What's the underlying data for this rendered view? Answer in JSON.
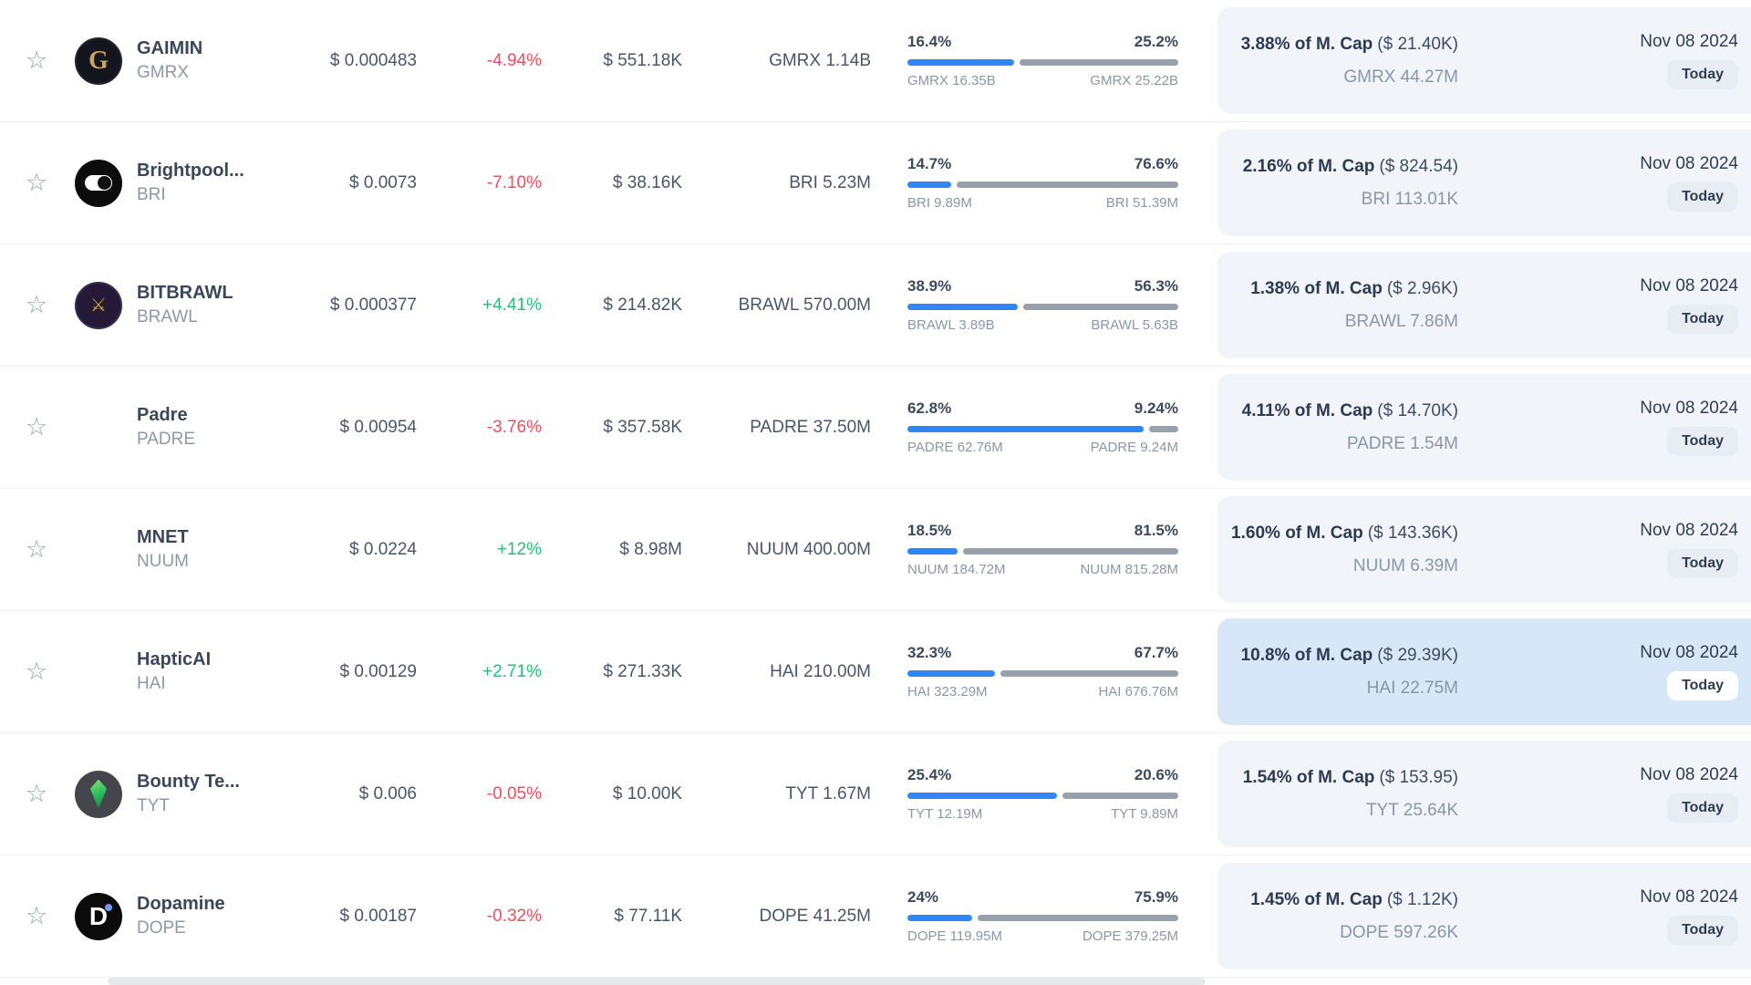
{
  "colors": {
    "accent_blue": "#2f87f6",
    "bar_gray": "#98a1ab",
    "positive": "#22c07a",
    "negative": "#ee4f5e",
    "panel_bg": "#f1f5fa",
    "panel_highlight_bg": "#d7e7f8",
    "badge_bg": "#e8edf4",
    "badge_highlight_bg": "#ffffff"
  },
  "table": {
    "rows": [
      {
        "name": "GAIMIN",
        "symbol": "GMRX",
        "logo": "gaimin",
        "logo_text": "G",
        "price": "$ 0.000483",
        "change": "-4.94%",
        "volume": "$ 551.18K",
        "supply": "GMRX 1.14B",
        "unlock_left_pct": "16.4%",
        "unlock_right_pct": "25.2%",
        "unlock_left_label": "GMRX 16.35B",
        "unlock_right_label": "GMRX 25.22B",
        "mcap_bold": "3.88% of M. Cap",
        "mcap_paren": "($ 21.40K)",
        "mcap_amount": "GMRX 44.27M",
        "date": "Nov 08 2024",
        "badge": "Today",
        "highlighted": false
      },
      {
        "name": "Brightpool...",
        "symbol": "BRI",
        "logo": "brightpool",
        "logo_text": "",
        "price": "$ 0.0073",
        "change": "-7.10%",
        "volume": "$ 38.16K",
        "supply": "BRI 5.23M",
        "unlock_left_pct": "14.7%",
        "unlock_right_pct": "76.6%",
        "unlock_left_label": "BRI 9.89M",
        "unlock_right_label": "BRI 51.39M",
        "mcap_bold": "2.16% of M. Cap",
        "mcap_paren": "($ 824.54)",
        "mcap_amount": "BRI 113.01K",
        "date": "Nov 08 2024",
        "badge": "Today",
        "highlighted": false
      },
      {
        "name": "BITBRAWL",
        "symbol": "BRAWL",
        "logo": "bitbrawl",
        "logo_text": "⚔",
        "price": "$ 0.000377",
        "change": "+4.41%",
        "volume": "$ 214.82K",
        "supply": "BRAWL 570.00M",
        "unlock_left_pct": "38.9%",
        "unlock_right_pct": "56.3%",
        "unlock_left_label": "BRAWL 3.89B",
        "unlock_right_label": "BRAWL 5.63B",
        "mcap_bold": "1.38% of M. Cap",
        "mcap_paren": "($ 2.96K)",
        "mcap_amount": "BRAWL 7.86M",
        "date": "Nov 08 2024",
        "badge": "Today",
        "highlighted": false
      },
      {
        "name": "Padre",
        "symbol": "PADRE",
        "logo": null,
        "logo_text": "",
        "price": "$ 0.00954",
        "change": "-3.76%",
        "volume": "$ 357.58K",
        "supply": "PADRE 37.50M",
        "unlock_left_pct": "62.8%",
        "unlock_right_pct": "9.24%",
        "unlock_left_label": "PADRE 62.76M",
        "unlock_right_label": "PADRE 9.24M",
        "mcap_bold": "4.11% of M. Cap",
        "mcap_paren": "($ 14.70K)",
        "mcap_amount": "PADRE 1.54M",
        "date": "Nov 08 2024",
        "badge": "Today",
        "highlighted": false
      },
      {
        "name": "MNET",
        "symbol": "NUUM",
        "logo": null,
        "logo_text": "",
        "price": "$ 0.0224",
        "change": "+12%",
        "volume": "$ 8.98M",
        "supply": "NUUM 400.00M",
        "unlock_left_pct": "18.5%",
        "unlock_right_pct": "81.5%",
        "unlock_left_label": "NUUM 184.72M",
        "unlock_right_label": "NUUM 815.28M",
        "mcap_bold": "1.60% of M. Cap",
        "mcap_paren": "($ 143.36K)",
        "mcap_amount": "NUUM 6.39M",
        "date": "Nov 08 2024",
        "badge": "Today",
        "highlighted": false
      },
      {
        "name": "HapticAI",
        "symbol": "HAI",
        "logo": null,
        "logo_text": "",
        "price": "$ 0.00129",
        "change": "+2.71%",
        "volume": "$ 271.33K",
        "supply": "HAI 210.00M",
        "unlock_left_pct": "32.3%",
        "unlock_right_pct": "67.7%",
        "unlock_left_label": "HAI 323.29M",
        "unlock_right_label": "HAI 676.76M",
        "mcap_bold": "10.8% of M. Cap",
        "mcap_paren": "($ 29.39K)",
        "mcap_amount": "HAI 22.75M",
        "date": "Nov 08 2024",
        "badge": "Today",
        "highlighted": true
      },
      {
        "name": "Bounty Te...",
        "symbol": "TYT",
        "logo": "bounty",
        "logo_text": "",
        "price": "$ 0.006",
        "change": "-0.05%",
        "volume": "$ 10.00K",
        "supply": "TYT 1.67M",
        "unlock_left_pct": "25.4%",
        "unlock_right_pct": "20.6%",
        "unlock_left_label": "TYT 12.19M",
        "unlock_right_label": "TYT 9.89M",
        "mcap_bold": "1.54% of M. Cap",
        "mcap_paren": "($ 153.95)",
        "mcap_amount": "TYT 25.64K",
        "date": "Nov 08 2024",
        "badge": "Today",
        "highlighted": false
      },
      {
        "name": "Dopamine",
        "symbol": "DOPE",
        "logo": "dopamine",
        "logo_text": "D",
        "price": "$ 0.00187",
        "change": "-0.32%",
        "volume": "$ 77.11K",
        "supply": "DOPE 41.25M",
        "unlock_left_pct": "24%",
        "unlock_right_pct": "75.9%",
        "unlock_left_label": "DOPE 119.95M",
        "unlock_right_label": "DOPE 379.25M",
        "mcap_bold": "1.45% of M. Cap",
        "mcap_paren": "($ 1.12K)",
        "mcap_amount": "DOPE 597.26K",
        "date": "Nov 08 2024",
        "badge": "Today",
        "highlighted": false
      }
    ]
  }
}
